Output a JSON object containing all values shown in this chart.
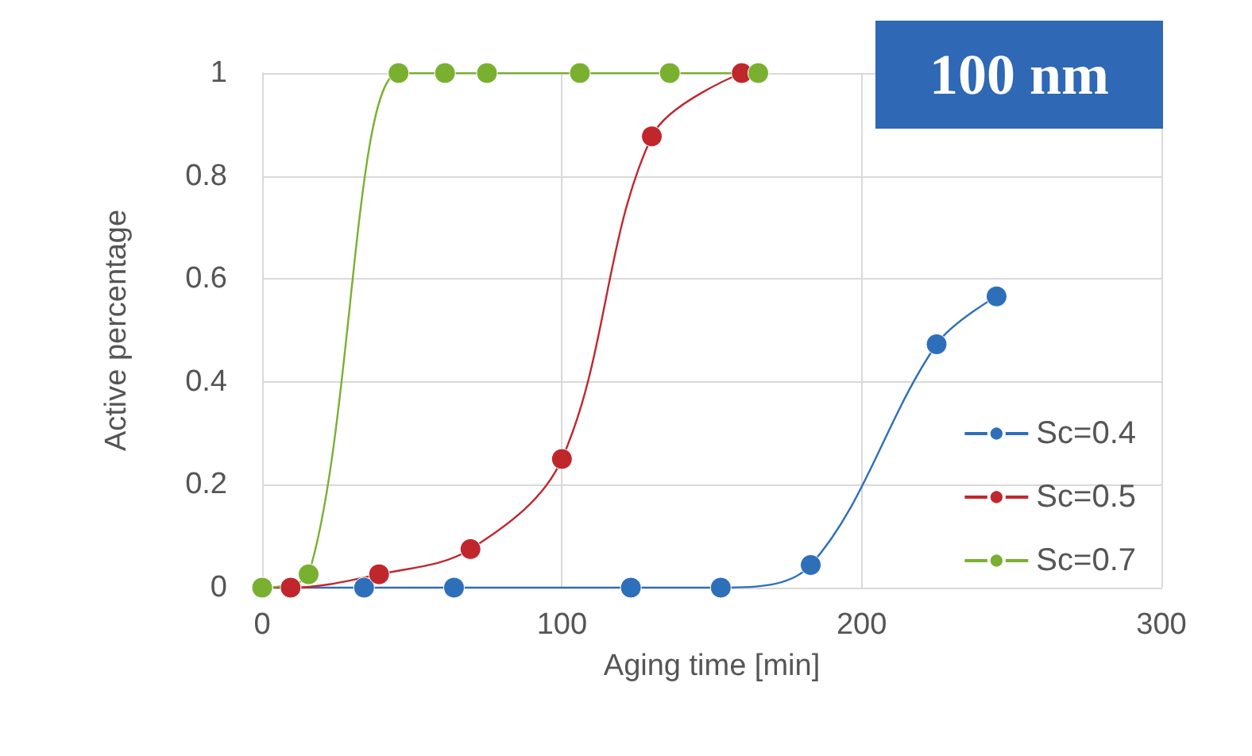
{
  "chart_data": {
    "type": "line",
    "title": "100 nm",
    "xlabel": "Aging time [min]",
    "ylabel": "Active percentage",
    "xlim": [
      0,
      300
    ],
    "xticks": [
      0,
      100,
      200,
      300
    ],
    "ylim": [
      0,
      1
    ],
    "yticks": [
      0,
      0.2,
      0.4,
      0.6,
      0.8,
      1
    ],
    "grid": true,
    "legend": "right",
    "marker": "circle",
    "line_style": "solid",
    "series": [
      {
        "name": "Sc=0.4",
        "color": "#2e6fba",
        "x": [
          0,
          34,
          64,
          123,
          153,
          183,
          225,
          245
        ],
        "values": [
          0,
          0,
          0,
          0,
          0,
          0.044,
          0.473,
          0.566
        ]
      },
      {
        "name": "Sc=0.5",
        "color": "#c0272d",
        "x": [
          0,
          9.5,
          39,
          69.5,
          100,
          130,
          160
        ],
        "values": [
          0,
          0,
          0.026,
          0.075,
          0.25,
          0.877,
          1
        ]
      },
      {
        "name": "Sc=0.7",
        "color": "#7ab030",
        "x": [
          0,
          15.5,
          45.5,
          61,
          75,
          106,
          136,
          165.5
        ],
        "values": [
          0,
          0.026,
          1,
          1,
          1,
          1,
          1,
          1
        ]
      }
    ]
  }
}
